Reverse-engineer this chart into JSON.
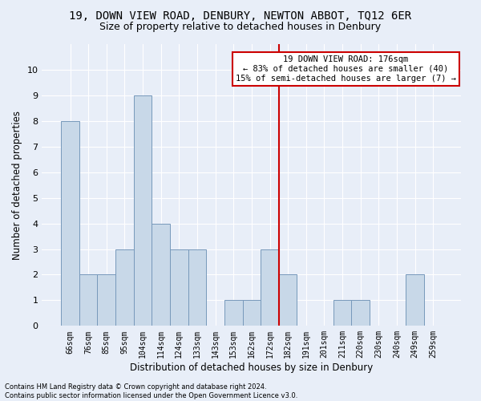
{
  "title1": "19, DOWN VIEW ROAD, DENBURY, NEWTON ABBOT, TQ12 6ER",
  "title2": "Size of property relative to detached houses in Denbury",
  "xlabel": "Distribution of detached houses by size in Denbury",
  "ylabel": "Number of detached properties",
  "categories": [
    "66sqm",
    "76sqm",
    "85sqm",
    "95sqm",
    "104sqm",
    "114sqm",
    "124sqm",
    "133sqm",
    "143sqm",
    "153sqm",
    "162sqm",
    "172sqm",
    "182sqm",
    "191sqm",
    "201sqm",
    "211sqm",
    "220sqm",
    "230sqm",
    "240sqm",
    "249sqm",
    "259sqm"
  ],
  "values": [
    8,
    2,
    2,
    3,
    9,
    4,
    3,
    3,
    0,
    1,
    1,
    3,
    2,
    0,
    0,
    1,
    1,
    0,
    0,
    2,
    0
  ],
  "bar_color": "#c8d8e8",
  "bar_edgecolor": "#7799bb",
  "vline_color": "#cc0000",
  "annotation_line1": "19 DOWN VIEW ROAD: 176sqm",
  "annotation_line2": "← 83% of detached houses are smaller (40)",
  "annotation_line3": "15% of semi-detached houses are larger (7) →",
  "annotation_boxcolor": "white",
  "annotation_edgecolor": "#cc0000",
  "footnote1": "Contains HM Land Registry data © Crown copyright and database right 2024.",
  "footnote2": "Contains public sector information licensed under the Open Government Licence v3.0.",
  "ylim": [
    0,
    11
  ],
  "yticks": [
    0,
    1,
    2,
    3,
    4,
    5,
    6,
    7,
    8,
    9,
    10,
    11
  ],
  "bg_color": "#e8eef8",
  "grid_color": "#ffffff",
  "title1_fontsize": 10,
  "title2_fontsize": 9,
  "vline_x": 11.5
}
